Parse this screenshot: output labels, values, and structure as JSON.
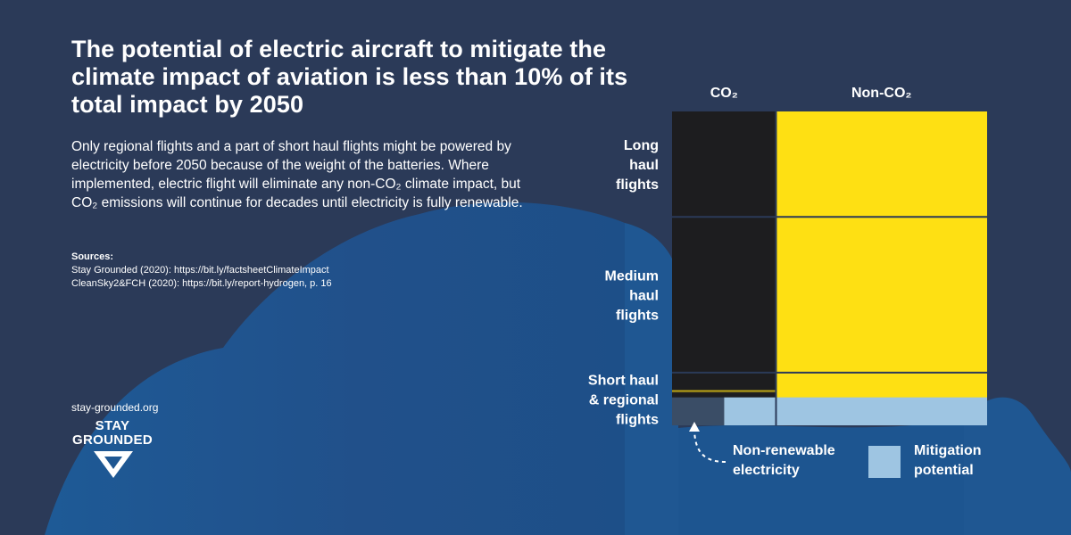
{
  "title": "The potential of electric aircraft to mitigate the climate impact of aviation is less than 10% of its total impact by 2050",
  "description": "Only regional flights and a part of short haul flights might be powered by electricity before 2050 because of the weight of the batteries. Where implemented, electric flight will eliminate any non-CO₂ climate impact, but CO₂ emissions will continue for decades until electricity is fully renewable.",
  "sources": {
    "heading": "Sources:",
    "items": [
      "Stay Grounded (2020): https://bit.ly/factsheetClimateImpact",
      "CleanSky2&FCH (2020): https://bit.ly/report-hydrogen, p. 16"
    ]
  },
  "footer": {
    "site": "stay-grounded.org",
    "logo_line1": "STAY",
    "logo_line2": "GROUNDED"
  },
  "colors": {
    "background": "#2b3a58",
    "cloud": "#1f5792",
    "co2": "#1d1d1f",
    "non_co2": "#fee013",
    "mitigation": "#9ec5e2",
    "non_renewable": "#3a4d66"
  },
  "chart_data": {
    "type": "mosaic",
    "columns": [
      {
        "label": "CO₂",
        "share": 0.33
      },
      {
        "label": "Non-CO₂",
        "share": 0.67
      }
    ],
    "rows": [
      {
        "label": [
          "Long",
          "haul",
          "flights"
        ],
        "share": 0.336
      },
      {
        "label": [
          "Medium",
          "haul",
          "flights"
        ],
        "share": 0.496
      },
      {
        "label": [
          "Short haul",
          "& regional",
          "flights"
        ],
        "share": 0.168
      }
    ],
    "mitigation": {
      "row": "Short haul & regional flights",
      "share_of_row": 0.53,
      "non_renewable_share_of_co2": 0.5
    },
    "legend": {
      "non_renewable": [
        "Non-renewable",
        "electricity"
      ],
      "mitigation": [
        "Mitigation",
        "potential"
      ]
    }
  }
}
